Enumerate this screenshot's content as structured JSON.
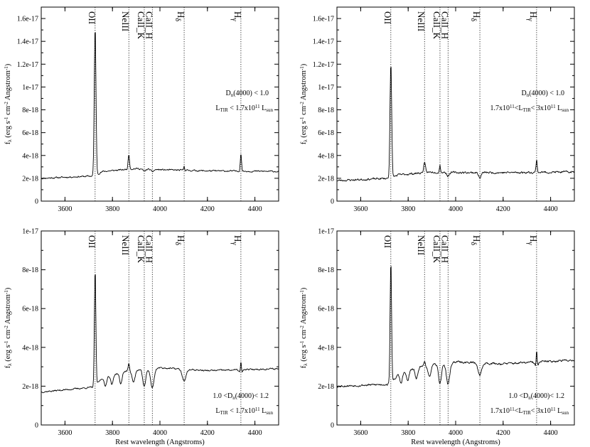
{
  "chart_data": [
    {
      "type": "line",
      "panel": "top-left",
      "ylabel": "f_λ (erg s^-1 cm^-2 Angstrom^-1)",
      "ylabel_parts": [
        "f",
        "λ",
        " (erg  s",
        "-1",
        " cm",
        "-2",
        " Angstrom",
        "-1",
        ")"
      ],
      "xlabel": "",
      "xlim": [
        3500,
        4500
      ],
      "ylim": [
        0,
        1.7e-17
      ],
      "xticks": [
        3600,
        3800,
        4000,
        4200,
        4400
      ],
      "yticks": [
        0,
        2e-18,
        4e-18,
        6e-18,
        8e-18,
        1e-17,
        1.2e-17,
        1.4e-17,
        1.6e-17
      ],
      "ytick_labels": [
        "0",
        "2e-18",
        "4e-18",
        "6e-18",
        "8e-18",
        "1e-17",
        "1.2e-17",
        "1.4e-17",
        "1.6e-17"
      ],
      "lines": [
        {
          "x": 3727,
          "label": "OII",
          "sub": ""
        },
        {
          "x": 3869,
          "label": "NeIII",
          "sub": ""
        },
        {
          "x": 3934,
          "label": "CaII_K",
          "sub": ""
        },
        {
          "x": 3968,
          "label": "CaII_H",
          "sub": ""
        },
        {
          "x": 4102,
          "label": "H",
          "sub": "δ"
        },
        {
          "x": 4341,
          "label": "H",
          "sub": "γ"
        }
      ],
      "annotation": [
        [
          [
            "D",
            ""
          ],
          [
            "n",
            "sub"
          ],
          [
            "(4000) < 1.0",
            ""
          ]
        ],
        [
          [
            "L",
            ""
          ],
          [
            "TIR",
            "sub"
          ],
          [
            " < 1.7x10",
            ""
          ],
          [
            "11",
            "sup"
          ],
          [
            " L",
            ""
          ],
          [
            "sun",
            "sub"
          ]
        ]
      ],
      "spectrum": {
        "continuum": [
          [
            3500,
            2e-18
          ],
          [
            3720,
            2.2e-18
          ],
          [
            3760,
            2.6e-18
          ],
          [
            3900,
            2.85e-18
          ],
          [
            4000,
            2.75e-18
          ],
          [
            4200,
            2.65e-18
          ],
          [
            4500,
            2.6e-18
          ]
        ],
        "emission": [
          [
            3727,
            1.3e-17,
            3.5
          ],
          [
            3869,
            1.3e-18,
            3
          ],
          [
            4102,
            4e-19,
            2
          ],
          [
            4341,
            1.6e-18,
            2.5
          ]
        ],
        "absorption": [
          [
            3934,
            2e-19,
            6
          ],
          [
            3968,
            2e-19,
            6
          ]
        ],
        "noise": 1.2e-19,
        "seed": 11
      }
    },
    {
      "type": "line",
      "panel": "top-right",
      "ylabel": "f_λ (erg s^-1 cm^-2 Angstrom^-1)",
      "ylabel_parts": [
        "f",
        "λ",
        " (erg  s",
        "-1",
        " cm",
        "-2",
        " Angstrom",
        "-1",
        ")"
      ],
      "xlabel": "",
      "xlim": [
        3500,
        4500
      ],
      "ylim": [
        0,
        1.7e-17
      ],
      "xticks": [
        3600,
        3800,
        4000,
        4200,
        4400
      ],
      "yticks": [
        0,
        2e-18,
        4e-18,
        6e-18,
        8e-18,
        1e-17,
        1.2e-17,
        1.4e-17,
        1.6e-17
      ],
      "ytick_labels": [
        "0",
        "2e-18",
        "4e-18",
        "6e-18",
        "8e-18",
        "1e-17",
        "1.2e-17",
        "1.4e-17",
        "1.6e-17"
      ],
      "lines": [
        {
          "x": 3727,
          "label": "OII",
          "sub": ""
        },
        {
          "x": 3869,
          "label": "NeIII",
          "sub": ""
        },
        {
          "x": 3934,
          "label": "CaII_K",
          "sub": ""
        },
        {
          "x": 3968,
          "label": "CaII_H",
          "sub": ""
        },
        {
          "x": 4102,
          "label": "H",
          "sub": "δ"
        },
        {
          "x": 4341,
          "label": "H",
          "sub": "γ"
        }
      ],
      "annotation": [
        [
          [
            "D",
            ""
          ],
          [
            "n",
            "sub"
          ],
          [
            "(4000) < 1.0",
            ""
          ]
        ],
        [
          [
            "1.7x10",
            ""
          ],
          [
            "11",
            "sup"
          ],
          [
            "<L",
            ""
          ],
          [
            "TIR",
            "sub"
          ],
          [
            "< 3x10",
            ""
          ],
          [
            "11",
            "sup"
          ],
          [
            " L",
            ""
          ],
          [
            "sun",
            "sub"
          ]
        ]
      ],
      "spectrum": {
        "continuum": [
          [
            3500,
            1.8e-18
          ],
          [
            3720,
            2e-18
          ],
          [
            3760,
            2.3e-18
          ],
          [
            3900,
            2.55e-18
          ],
          [
            4000,
            2.5e-18
          ],
          [
            4200,
            2.5e-18
          ],
          [
            4500,
            2.55e-18
          ]
        ],
        "emission": [
          [
            3727,
            1e-17,
            3.5
          ],
          [
            3869,
            8e-19,
            4
          ],
          [
            3934,
            7e-19,
            2
          ],
          [
            4341,
            1.1e-18,
            2.5
          ]
        ],
        "absorption": [
          [
            3968,
            3e-19,
            5
          ],
          [
            4102,
            5e-19,
            5
          ]
        ],
        "noise": 1.6e-19,
        "seed": 23
      }
    },
    {
      "type": "line",
      "panel": "bottom-left",
      "ylabel": "f_λ (erg s^-1 cm^-2 Angstrom^-1)",
      "ylabel_parts": [
        "f",
        "λ",
        " (erg  s",
        "-1",
        " cm",
        "-2",
        " Angstrom",
        "-1",
        ")"
      ],
      "xlabel": "Rest wavelength (Angstroms)",
      "xlim": [
        3500,
        4500
      ],
      "ylim": [
        0,
        1e-17
      ],
      "xticks": [
        3600,
        3800,
        4000,
        4200,
        4400
      ],
      "yticks": [
        0,
        2e-18,
        4e-18,
        6e-18,
        8e-18,
        1e-17
      ],
      "ytick_labels": [
        "0",
        "2e-18",
        "4e-18",
        "6e-18",
        "8e-18",
        "1e-17"
      ],
      "lines": [
        {
          "x": 3727,
          "label": "OII",
          "sub": ""
        },
        {
          "x": 3869,
          "label": "NeIII",
          "sub": ""
        },
        {
          "x": 3934,
          "label": "CaII_K",
          "sub": ""
        },
        {
          "x": 3968,
          "label": "CaII_H",
          "sub": ""
        },
        {
          "x": 4102,
          "label": "H",
          "sub": "δ"
        },
        {
          "x": 4341,
          "label": "H",
          "sub": "γ"
        }
      ],
      "annotation": [
        [
          [
            "1.0 <D",
            ""
          ],
          [
            "n",
            "sub"
          ],
          [
            "(4000)< 1.2",
            ""
          ]
        ],
        [
          [
            "L",
            ""
          ],
          [
            "TIR",
            "sub"
          ],
          [
            " < 1.7x10",
            ""
          ],
          [
            "11",
            "sup"
          ],
          [
            " L",
            ""
          ],
          [
            "sun",
            "sub"
          ]
        ]
      ],
      "spectrum": {
        "continuum": [
          [
            3500,
            1.7e-18
          ],
          [
            3720,
            1.95e-18
          ],
          [
            3760,
            2.45e-18
          ],
          [
            3850,
            2.75e-18
          ],
          [
            4000,
            2.95e-18
          ],
          [
            4200,
            2.8e-18
          ],
          [
            4500,
            2.9e-18
          ]
        ],
        "emission": [
          [
            3727,
            6e-18,
            3
          ],
          [
            3869,
            4e-19,
            3
          ],
          [
            4341,
            6e-19,
            2
          ]
        ],
        "absorption": [
          [
            3770,
            5e-19,
            5
          ],
          [
            3798,
            5e-19,
            5
          ],
          [
            3835,
            6e-19,
            5
          ],
          [
            3889,
            6e-19,
            6
          ],
          [
            3934,
            9e-19,
            6
          ],
          [
            3968,
            1e-18,
            7
          ],
          [
            4102,
            6e-19,
            8
          ],
          [
            4341,
            2e-19,
            6
          ]
        ],
        "noise": 7e-20,
        "seed": 37
      }
    },
    {
      "type": "line",
      "panel": "bottom-right",
      "ylabel": "f_λ (erg s^-1 cm^-2 Angstrom^-1)",
      "ylabel_parts": [
        "f",
        "λ",
        " (erg  s",
        "-1",
        " cm",
        "-2",
        " Angstrom",
        "-1",
        ")"
      ],
      "xlabel": "Rest wavelength (Angstroms)",
      "xlim": [
        3500,
        4500
      ],
      "ylim": [
        0,
        1e-17
      ],
      "xticks": [
        3600,
        3800,
        4000,
        4200,
        4400
      ],
      "yticks": [
        0,
        2e-18,
        4e-18,
        6e-18,
        8e-18,
        1e-17
      ],
      "ytick_labels": [
        "0",
        "2e-18",
        "4e-18",
        "6e-18",
        "8e-18",
        "1e-17"
      ],
      "lines": [
        {
          "x": 3727,
          "label": "OII",
          "sub": ""
        },
        {
          "x": 3869,
          "label": "NeIII",
          "sub": ""
        },
        {
          "x": 3934,
          "label": "CaII_K",
          "sub": ""
        },
        {
          "x": 3968,
          "label": "CaII_H",
          "sub": ""
        },
        {
          "x": 4102,
          "label": "H",
          "sub": "δ"
        },
        {
          "x": 4341,
          "label": "H",
          "sub": "γ"
        }
      ],
      "annotation": [
        [
          [
            "1.0 <D",
            ""
          ],
          [
            "n",
            "sub"
          ],
          [
            "(4000)< 1.2",
            ""
          ]
        ],
        [
          [
            "1.7x10",
            ""
          ],
          [
            "11",
            "sup"
          ],
          [
            "<L",
            ""
          ],
          [
            "TIR",
            "sub"
          ],
          [
            "< 3x10",
            ""
          ],
          [
            "11",
            "sup"
          ],
          [
            " L",
            ""
          ],
          [
            "sun",
            "sub"
          ]
        ]
      ],
      "spectrum": {
        "continuum": [
          [
            3500,
            2e-18
          ],
          [
            3720,
            2.1e-18
          ],
          [
            3760,
            2.6e-18
          ],
          [
            3850,
            3e-18
          ],
          [
            4000,
            3.25e-18
          ],
          [
            4200,
            3.15e-18
          ],
          [
            4500,
            3.35e-18
          ]
        ],
        "emission": [
          [
            3727,
            6.3e-18,
            3
          ],
          [
            3869,
            3e-19,
            3
          ],
          [
            4341,
            9e-19,
            2
          ]
        ],
        "absorption": [
          [
            3770,
            5e-19,
            5
          ],
          [
            3798,
            5e-19,
            5
          ],
          [
            3835,
            6e-19,
            5
          ],
          [
            3889,
            6e-19,
            6
          ],
          [
            3934,
            1e-18,
            6
          ],
          [
            3968,
            1.1e-18,
            7
          ],
          [
            4102,
            6e-19,
            8
          ],
          [
            4341,
            3e-19,
            6
          ]
        ],
        "noise": 1e-19,
        "seed": 53
      }
    }
  ]
}
